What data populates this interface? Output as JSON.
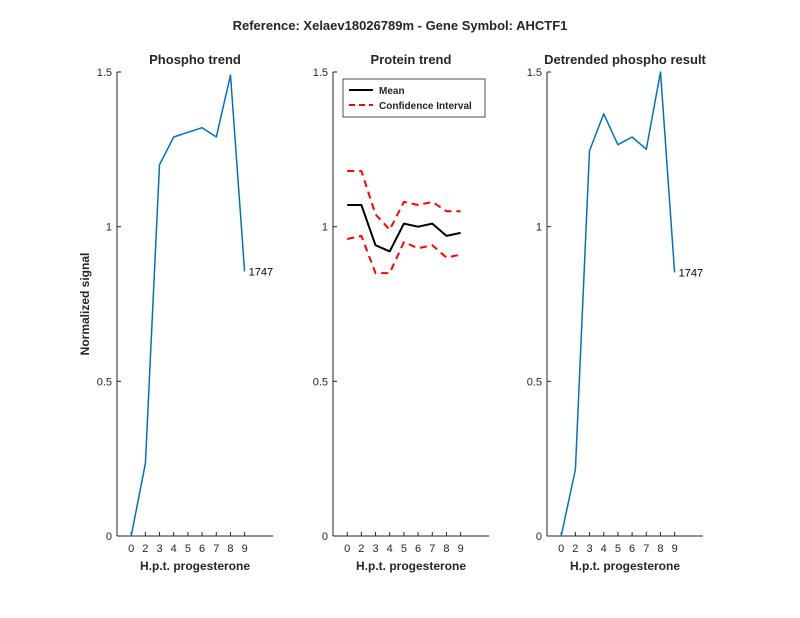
{
  "figure": {
    "title": "Reference:  Xelaev18026789m - Gene Symbol:  AHCTF1",
    "colors": {
      "trend": "#0072bd",
      "mean": "#000000",
      "ci": "#ff0000",
      "axis": "#262626"
    }
  },
  "chart_data": [
    {
      "type": "line",
      "title": "Phospho trend",
      "xlabel": "H.p.t. progesterone",
      "ylabel": "Normalized signal",
      "categories": [
        "0",
        "2",
        "3",
        "4",
        "5",
        "6",
        "7",
        "8",
        "9"
      ],
      "xlim": [
        -1,
        10
      ],
      "ylim": [
        0,
        1.5
      ],
      "yticks": [
        "0",
        "0.5",
        "1",
        "1.5"
      ],
      "grid": false,
      "series": [
        {
          "values": [
            0.0,
            0.235,
            1.2,
            1.29,
            1.305,
            1.32,
            1.29,
            1.49,
            0.855
          ]
        }
      ],
      "annotation": "1747"
    },
    {
      "type": "line",
      "title": "Protein trend",
      "xlabel": "H.p.t. progesterone",
      "ylabel": "",
      "categories": [
        "0",
        "2",
        "3",
        "4",
        "5",
        "6",
        "7",
        "8",
        "9"
      ],
      "xlim": [
        -1,
        10
      ],
      "ylim": [
        0,
        1.5
      ],
      "yticks": [
        "0",
        "0.5",
        "1",
        "1.5"
      ],
      "grid": false,
      "legend_position": "top-left",
      "series": [
        {
          "name": "Mean",
          "style": "solid",
          "values": [
            1.07,
            1.07,
            0.94,
            0.92,
            1.01,
            1.0,
            1.01,
            0.97,
            0.98
          ]
        },
        {
          "name": "Confidence Interval",
          "style": "dashed",
          "values": [
            1.18,
            1.18,
            1.04,
            0.99,
            1.08,
            1.07,
            1.08,
            1.05,
            1.05
          ]
        },
        {
          "style": "dashed",
          "values": [
            0.96,
            0.97,
            0.85,
            0.85,
            0.95,
            0.93,
            0.94,
            0.9,
            0.91
          ]
        }
      ]
    },
    {
      "type": "line",
      "title": "Detrended phospho result",
      "xlabel": "H.p.t. progesterone",
      "ylabel": "",
      "categories": [
        "0",
        "2",
        "3",
        "4",
        "5",
        "6",
        "7",
        "8",
        "9"
      ],
      "xlim": [
        -1,
        10
      ],
      "ylim": [
        0,
        1.5
      ],
      "yticks": [
        "0",
        "0.5",
        "1",
        "1.5"
      ],
      "grid": false,
      "series": [
        {
          "values": [
            0.0,
            0.215,
            1.245,
            1.365,
            1.265,
            1.29,
            1.25,
            1.5,
            0.852
          ]
        }
      ],
      "annotation": "1747"
    }
  ]
}
